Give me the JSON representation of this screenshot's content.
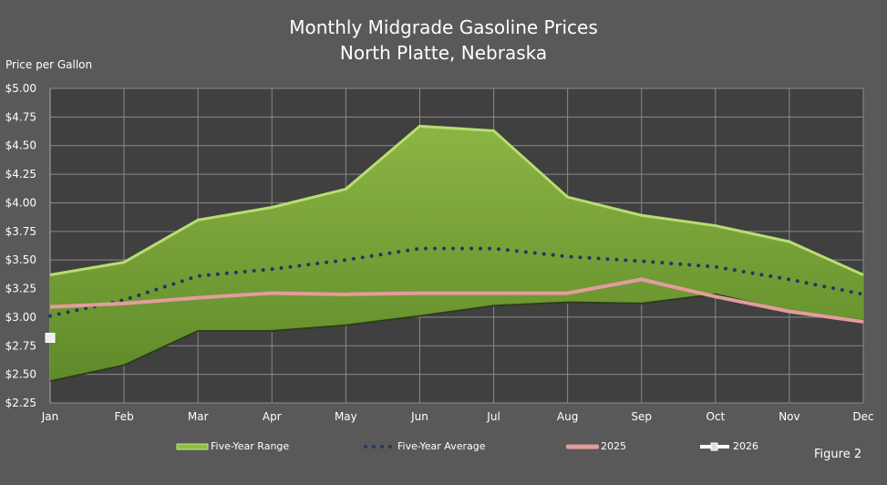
{
  "chart_data": {
    "type": "area",
    "title": "Monthly Midgrade Gasoline Prices",
    "subtitle": "North Platte, Nebraska",
    "ylabel": "Price per Gallon",
    "xlabel": "",
    "ylim": [
      2.25,
      5.0
    ],
    "yticks": [
      "$2.25",
      "$2.50",
      "$2.75",
      "$3.00",
      "$3.25",
      "$3.50",
      "$3.75",
      "$4.00",
      "$4.25",
      "$4.50",
      "$4.75",
      "$5.00"
    ],
    "categories": [
      "Jan",
      "Feb",
      "Mar",
      "Apr",
      "May",
      "Jun",
      "Jul",
      "Aug",
      "Sep",
      "Oct",
      "Nov",
      "Dec"
    ],
    "grid": true,
    "legend_position": "bottom",
    "series": [
      {
        "name": "Five-Year Range",
        "kind": "range",
        "color": "#7aa33a",
        "high": [
          3.37,
          3.48,
          3.85,
          3.96,
          4.12,
          4.67,
          4.63,
          4.05,
          3.89,
          3.8,
          3.66,
          3.37
        ],
        "low": [
          2.44,
          2.58,
          2.88,
          2.88,
          2.93,
          3.01,
          3.1,
          3.13,
          3.12,
          3.2,
          3.05,
          2.97
        ]
      },
      {
        "name": "Five-Year Average",
        "kind": "dotted",
        "color": "#1f3864",
        "values": [
          3.01,
          3.15,
          3.36,
          3.42,
          3.5,
          3.6,
          3.6,
          3.53,
          3.49,
          3.44,
          3.33,
          3.2
        ]
      },
      {
        "name": "2025",
        "kind": "line",
        "color": "#e39c9c",
        "values": [
          3.09,
          3.12,
          3.17,
          3.21,
          3.2,
          3.21,
          3.21,
          3.21,
          3.33,
          3.18,
          3.05,
          2.96
        ]
      },
      {
        "name": "2026",
        "kind": "marker",
        "color": "#ffffff",
        "values": [
          2.82,
          null,
          null,
          null,
          null,
          null,
          null,
          null,
          null,
          null,
          null,
          null
        ]
      }
    ]
  },
  "figure_label": "Figure 2"
}
